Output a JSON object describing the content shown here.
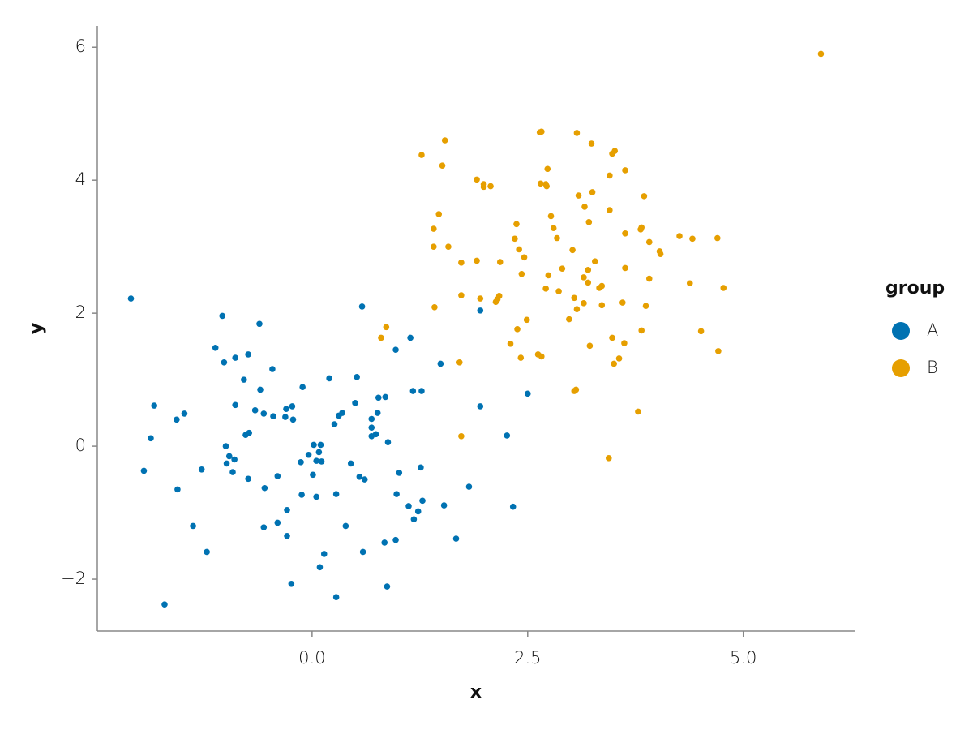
{
  "chart_data": {
    "type": "scatter",
    "x_label": "x",
    "y_label": "y",
    "legend_title": "group",
    "legend_position": "right",
    "grid": false,
    "xlim": [
      -2.49,
      6.3
    ],
    "ylim": [
      -2.78,
      6.32
    ],
    "xticks": [
      {
        "value": 0,
        "label": "0.0"
      },
      {
        "value": 2.5,
        "label": "2.5"
      },
      {
        "value": 5,
        "label": "5.0"
      }
    ],
    "yticks": [
      {
        "value": -2,
        "label": "−2"
      },
      0,
      2,
      4,
      6
    ],
    "series": [
      {
        "name": "A",
        "color": "#0072b2",
        "x": [
          -2.1,
          -1.04,
          -0.61,
          0.58,
          1.95,
          1.14,
          -1.12,
          -0.74,
          -0.89,
          -1.02,
          0.97,
          1.49,
          -0.46,
          -0.79,
          -0.11,
          0.2,
          0.52,
          -0.6,
          -1.83,
          -1.48,
          -1.57,
          -0.89,
          -0.66,
          -0.56,
          -0.45,
          -0.31,
          -0.3,
          -0.23,
          -0.22,
          0.5,
          0.77,
          0.85,
          1.17,
          1.27,
          0.35,
          0.31,
          0.26,
          0.76,
          0.69,
          0.69,
          0.69,
          0.74,
          0.88,
          -0.77,
          -0.73,
          -1.87,
          -1.0,
          0.02,
          0.1,
          -0.04,
          0.08,
          0.05,
          0.11,
          -0.13,
          -0.96,
          -0.9,
          -0.99,
          0.45,
          -0.92,
          -1.28,
          -1.95,
          1.01,
          1.26,
          0.01,
          -0.74,
          -0.4,
          0.55,
          0.61,
          -1.56,
          -0.55,
          -0.12,
          0.05,
          0.28,
          0.98,
          1.82,
          2.33,
          1.53,
          1.28,
          1.12,
          1.23,
          1.18,
          -0.29,
          -0.4,
          0.39,
          -1.38,
          -0.56,
          -0.29,
          0.84,
          0.97,
          1.67,
          -1.22,
          0.59,
          0.14,
          0.09,
          -0.24,
          0.87,
          0.28,
          -1.71,
          2.5,
          1.95,
          2.26
        ],
        "values": [
          2.22,
          1.96,
          1.84,
          2.1,
          2.04,
          1.63,
          1.48,
          1.38,
          1.33,
          1.26,
          1.45,
          1.24,
          1.16,
          1.0,
          0.89,
          1.02,
          1.04,
          0.85,
          0.61,
          0.49,
          0.4,
          0.62,
          0.54,
          0.49,
          0.45,
          0.44,
          0.56,
          0.6,
          0.4,
          0.65,
          0.73,
          0.74,
          0.83,
          0.83,
          0.5,
          0.46,
          0.33,
          0.5,
          0.41,
          0.28,
          0.15,
          0.18,
          0.06,
          0.17,
          0.2,
          0.12,
          0.0,
          0.02,
          0.02,
          -0.13,
          -0.09,
          -0.22,
          -0.23,
          -0.24,
          -0.15,
          -0.2,
          -0.26,
          -0.26,
          -0.39,
          -0.35,
          -0.37,
          -0.4,
          -0.32,
          -0.43,
          -0.49,
          -0.45,
          -0.46,
          -0.5,
          -0.65,
          -0.63,
          -0.73,
          -0.76,
          -0.72,
          -0.72,
          -0.61,
          -0.91,
          -0.89,
          -0.82,
          -0.9,
          -0.98,
          -1.1,
          -0.96,
          -1.15,
          -1.2,
          -1.2,
          -1.22,
          -1.35,
          -1.45,
          -1.41,
          -1.39,
          -1.59,
          -1.59,
          -1.62,
          -1.82,
          -2.07,
          -2.11,
          -2.27,
          -2.38,
          0.79,
          0.6,
          0.16
        ]
      },
      {
        "name": "B",
        "color": "#e69f00",
        "x": [
          5.9,
          2.66,
          2.64,
          3.07,
          3.24,
          1.54,
          1.27,
          3.51,
          3.48,
          1.51,
          2.73,
          3.63,
          3.45,
          1.91,
          1.99,
          2.07,
          1.99,
          2.65,
          2.71,
          2.72,
          3.25,
          3.09,
          3.85,
          3.16,
          3.45,
          1.47,
          2.77,
          3.21,
          2.37,
          1.41,
          2.8,
          3.82,
          3.81,
          3.63,
          4.26,
          2.84,
          2.35,
          4.41,
          4.7,
          3.91,
          1.41,
          1.58,
          2.4,
          3.02,
          4.03,
          4.04,
          2.46,
          1.91,
          1.73,
          2.18,
          3.28,
          3.63,
          2.9,
          3.2,
          2.43,
          2.74,
          3.15,
          3.91,
          3.2,
          3.36,
          3.33,
          4.38,
          4.77,
          2.71,
          2.86,
          2.17,
          2.15,
          2.13,
          1.95,
          1.73,
          3.04,
          3.6,
          3.15,
          3.36,
          3.87,
          1.42,
          3.07,
          2.98,
          2.49,
          0.86,
          2.38,
          3.82,
          4.51,
          0.8,
          3.48,
          3.62,
          2.3,
          3.22,
          4.71,
          2.62,
          2.66,
          2.42,
          3.56,
          3.5,
          1.71,
          3.06,
          3.04,
          3.78,
          1.73,
          3.44
        ],
        "values": [
          5.9,
          4.73,
          4.72,
          4.71,
          4.55,
          4.6,
          4.38,
          4.44,
          4.4,
          4.22,
          4.17,
          4.15,
          4.07,
          4.01,
          3.94,
          3.91,
          3.9,
          3.95,
          3.94,
          3.91,
          3.82,
          3.77,
          3.76,
          3.6,
          3.55,
          3.49,
          3.46,
          3.37,
          3.34,
          3.27,
          3.28,
          3.29,
          3.26,
          3.2,
          3.16,
          3.13,
          3.12,
          3.12,
          3.13,
          3.07,
          3.0,
          3.0,
          2.96,
          2.95,
          2.93,
          2.89,
          2.84,
          2.79,
          2.76,
          2.77,
          2.78,
          2.68,
          2.67,
          2.65,
          2.59,
          2.57,
          2.54,
          2.52,
          2.46,
          2.41,
          2.38,
          2.45,
          2.38,
          2.37,
          2.33,
          2.26,
          2.21,
          2.17,
          2.22,
          2.27,
          2.23,
          2.16,
          2.15,
          2.12,
          2.11,
          2.09,
          2.06,
          1.91,
          1.9,
          1.79,
          1.76,
          1.74,
          1.73,
          1.63,
          1.63,
          1.55,
          1.54,
          1.51,
          1.43,
          1.38,
          1.35,
          1.33,
          1.32,
          1.24,
          1.26,
          0.85,
          0.83,
          0.52,
          0.15,
          -0.18
        ]
      }
    ]
  }
}
